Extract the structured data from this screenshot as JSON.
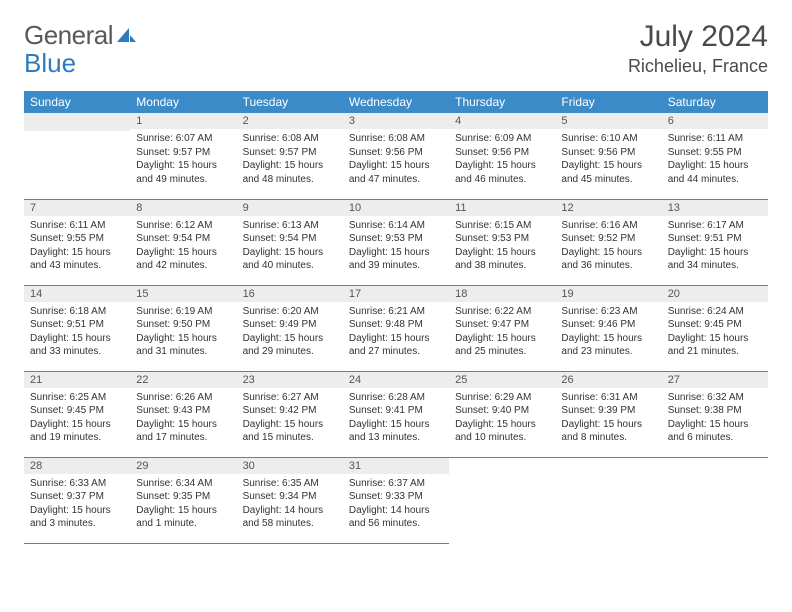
{
  "brand": {
    "part1": "General",
    "part2": "Blue"
  },
  "title": {
    "month_year": "July 2024",
    "location": "Richelieu, France"
  },
  "colors": {
    "header_bg": "#3b8bc9",
    "header_fg": "#ffffff",
    "daynum_bg": "#eceded",
    "border": "#3b8bc9",
    "text": "#333333"
  },
  "weekdays": [
    "Sunday",
    "Monday",
    "Tuesday",
    "Wednesday",
    "Thursday",
    "Friday",
    "Saturday"
  ],
  "weeks": [
    [
      null,
      {
        "n": "1",
        "sr": "6:07 AM",
        "ss": "9:57 PM",
        "d": "15 hours and 49 minutes."
      },
      {
        "n": "2",
        "sr": "6:08 AM",
        "ss": "9:57 PM",
        "d": "15 hours and 48 minutes."
      },
      {
        "n": "3",
        "sr": "6:08 AM",
        "ss": "9:56 PM",
        "d": "15 hours and 47 minutes."
      },
      {
        "n": "4",
        "sr": "6:09 AM",
        "ss": "9:56 PM",
        "d": "15 hours and 46 minutes."
      },
      {
        "n": "5",
        "sr": "6:10 AM",
        "ss": "9:56 PM",
        "d": "15 hours and 45 minutes."
      },
      {
        "n": "6",
        "sr": "6:11 AM",
        "ss": "9:55 PM",
        "d": "15 hours and 44 minutes."
      }
    ],
    [
      {
        "n": "7",
        "sr": "6:11 AM",
        "ss": "9:55 PM",
        "d": "15 hours and 43 minutes."
      },
      {
        "n": "8",
        "sr": "6:12 AM",
        "ss": "9:54 PM",
        "d": "15 hours and 42 minutes."
      },
      {
        "n": "9",
        "sr": "6:13 AM",
        "ss": "9:54 PM",
        "d": "15 hours and 40 minutes."
      },
      {
        "n": "10",
        "sr": "6:14 AM",
        "ss": "9:53 PM",
        "d": "15 hours and 39 minutes."
      },
      {
        "n": "11",
        "sr": "6:15 AM",
        "ss": "9:53 PM",
        "d": "15 hours and 38 minutes."
      },
      {
        "n": "12",
        "sr": "6:16 AM",
        "ss": "9:52 PM",
        "d": "15 hours and 36 minutes."
      },
      {
        "n": "13",
        "sr": "6:17 AM",
        "ss": "9:51 PM",
        "d": "15 hours and 34 minutes."
      }
    ],
    [
      {
        "n": "14",
        "sr": "6:18 AM",
        "ss": "9:51 PM",
        "d": "15 hours and 33 minutes."
      },
      {
        "n": "15",
        "sr": "6:19 AM",
        "ss": "9:50 PM",
        "d": "15 hours and 31 minutes."
      },
      {
        "n": "16",
        "sr": "6:20 AM",
        "ss": "9:49 PM",
        "d": "15 hours and 29 minutes."
      },
      {
        "n": "17",
        "sr": "6:21 AM",
        "ss": "9:48 PM",
        "d": "15 hours and 27 minutes."
      },
      {
        "n": "18",
        "sr": "6:22 AM",
        "ss": "9:47 PM",
        "d": "15 hours and 25 minutes."
      },
      {
        "n": "19",
        "sr": "6:23 AM",
        "ss": "9:46 PM",
        "d": "15 hours and 23 minutes."
      },
      {
        "n": "20",
        "sr": "6:24 AM",
        "ss": "9:45 PM",
        "d": "15 hours and 21 minutes."
      }
    ],
    [
      {
        "n": "21",
        "sr": "6:25 AM",
        "ss": "9:45 PM",
        "d": "15 hours and 19 minutes."
      },
      {
        "n": "22",
        "sr": "6:26 AM",
        "ss": "9:43 PM",
        "d": "15 hours and 17 minutes."
      },
      {
        "n": "23",
        "sr": "6:27 AM",
        "ss": "9:42 PM",
        "d": "15 hours and 15 minutes."
      },
      {
        "n": "24",
        "sr": "6:28 AM",
        "ss": "9:41 PM",
        "d": "15 hours and 13 minutes."
      },
      {
        "n": "25",
        "sr": "6:29 AM",
        "ss": "9:40 PM",
        "d": "15 hours and 10 minutes."
      },
      {
        "n": "26",
        "sr": "6:31 AM",
        "ss": "9:39 PM",
        "d": "15 hours and 8 minutes."
      },
      {
        "n": "27",
        "sr": "6:32 AM",
        "ss": "9:38 PM",
        "d": "15 hours and 6 minutes."
      }
    ],
    [
      {
        "n": "28",
        "sr": "6:33 AM",
        "ss": "9:37 PM",
        "d": "15 hours and 3 minutes."
      },
      {
        "n": "29",
        "sr": "6:34 AM",
        "ss": "9:35 PM",
        "d": "15 hours and 1 minute."
      },
      {
        "n": "30",
        "sr": "6:35 AM",
        "ss": "9:34 PM",
        "d": "14 hours and 58 minutes."
      },
      {
        "n": "31",
        "sr": "6:37 AM",
        "ss": "9:33 PM",
        "d": "14 hours and 56 minutes."
      },
      null,
      null,
      null
    ]
  ],
  "labels": {
    "sunrise": "Sunrise:",
    "sunset": "Sunset:",
    "daylight": "Daylight:"
  }
}
